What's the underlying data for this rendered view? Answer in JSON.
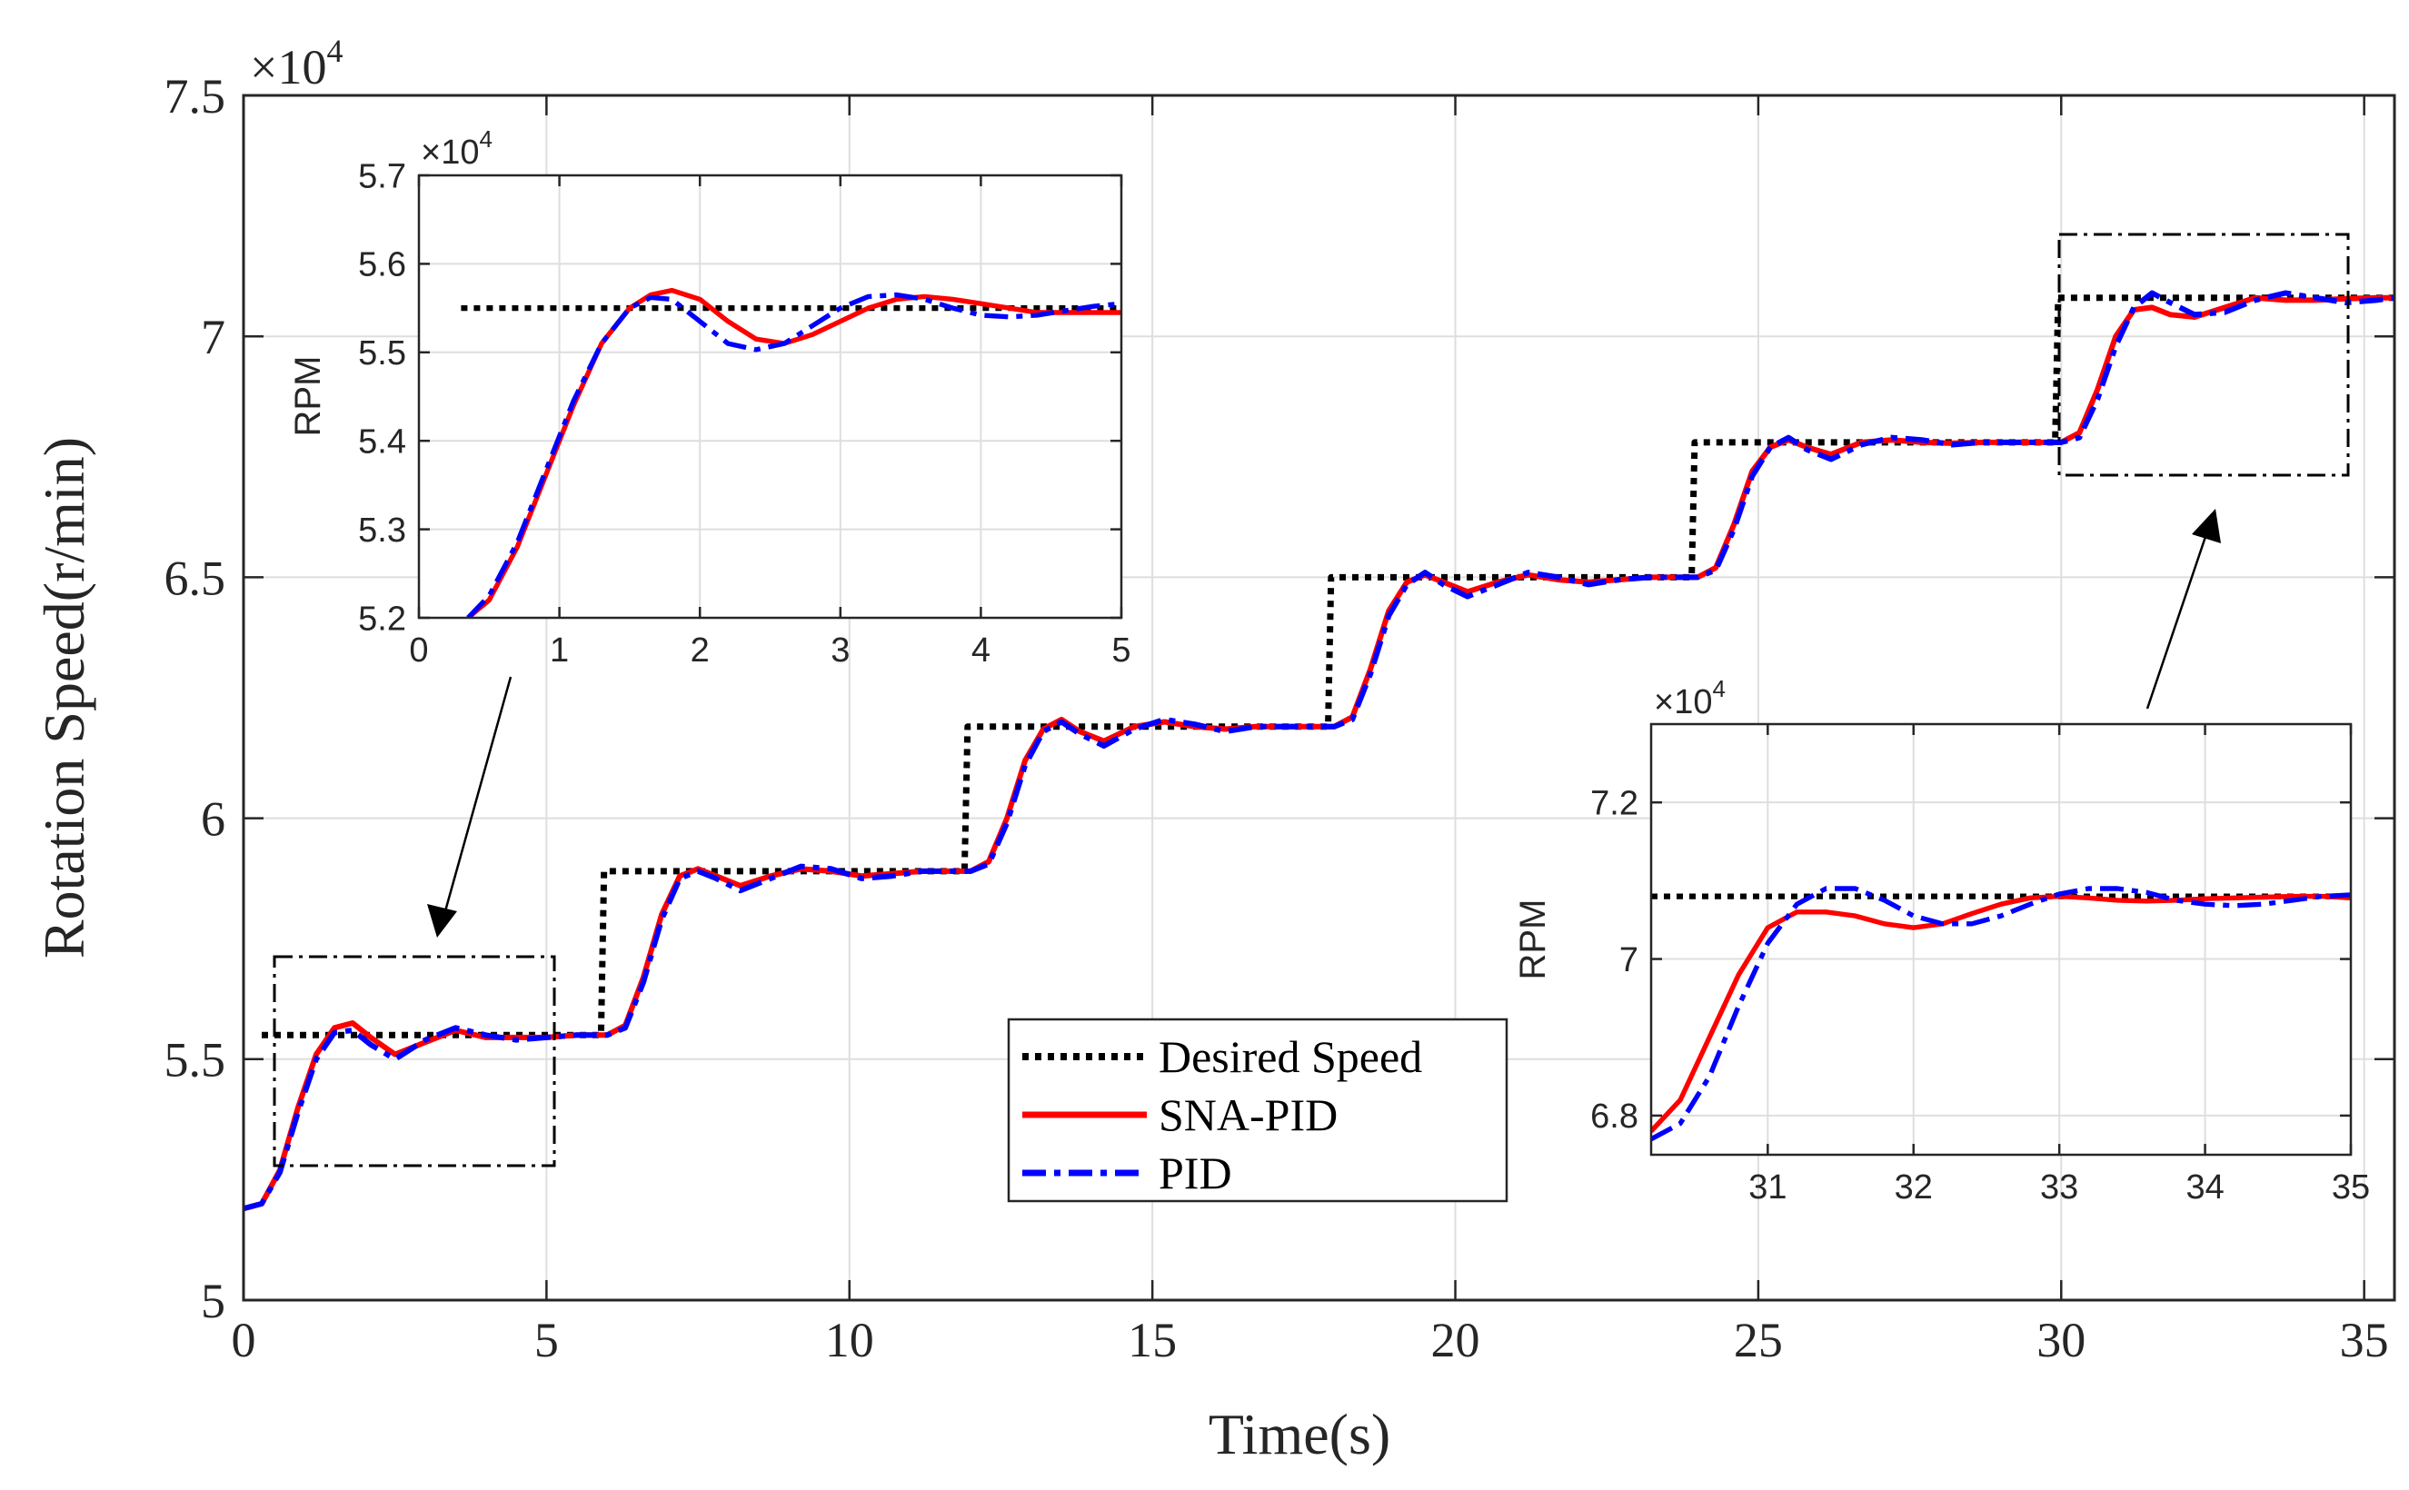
{
  "chart_data": [
    {
      "id": "main",
      "type": "line",
      "title": "",
      "xlabel": "Time(s)",
      "ylabel": "Rotation Speed(r/min)",
      "exponent_label": "×10",
      "exponent_power": "4",
      "xlim": [
        0,
        35.5
      ],
      "ylim": [
        5.0,
        7.5
      ],
      "xticks": [
        0,
        5,
        10,
        15,
        20,
        25,
        30,
        35
      ],
      "xtick_labels": [
        "0",
        "5",
        "10",
        "15",
        "20",
        "25",
        "30",
        "35"
      ],
      "yticks": [
        5.0,
        5.5,
        6.0,
        6.5,
        7.0,
        7.5
      ],
      "ytick_labels": [
        "5",
        "5.5",
        "6",
        "6.5",
        "7",
        "7.5"
      ],
      "grid": true,
      "legend_position": "center-bottom",
      "series": [
        {
          "name": "Desired Speed",
          "color": "#000000",
          "style": "dotted",
          "x": [
            0.3,
            5.9,
            5.95,
            11.9,
            11.95,
            17.9,
            17.95,
            23.9,
            23.95,
            29.9,
            29.95,
            35.5
          ],
          "y": [
            5.55,
            5.55,
            5.89,
            5.89,
            6.19,
            6.19,
            6.5,
            6.5,
            6.78,
            6.78,
            7.08,
            7.08
          ]
        },
        {
          "name": "SNA-PID",
          "color": "#ff0000",
          "style": "solid",
          "x": [
            0,
            0.3,
            0.6,
            0.9,
            1.2,
            1.5,
            1.8,
            2.1,
            2.5,
            3.0,
            3.5,
            4.0,
            4.5,
            5.0,
            5.5,
            6.0,
            6.3,
            6.6,
            6.9,
            7.2,
            7.5,
            7.8,
            8.2,
            8.7,
            9.2,
            9.7,
            10.2,
            10.7,
            11.2,
            11.6,
            12.0,
            12.3,
            12.6,
            12.9,
            13.2,
            13.5,
            13.8,
            14.2,
            14.7,
            15.2,
            15.7,
            16.2,
            16.7,
            17.2,
            17.6,
            18.0,
            18.3,
            18.6,
            18.9,
            19.2,
            19.5,
            19.8,
            20.2,
            20.7,
            21.2,
            21.7,
            22.2,
            22.7,
            23.2,
            23.6,
            24.0,
            24.3,
            24.6,
            24.9,
            25.2,
            25.5,
            25.8,
            26.2,
            26.7,
            27.2,
            27.7,
            28.2,
            28.7,
            29.2,
            29.6,
            30.0,
            30.3,
            30.6,
            30.9,
            31.2,
            31.5,
            31.8,
            32.2,
            32.7,
            33.2,
            33.7,
            34.2,
            34.7,
            35.2,
            35.5
          ],
          "y": [
            5.19,
            5.2,
            5.27,
            5.4,
            5.51,
            5.565,
            5.575,
            5.545,
            5.51,
            5.535,
            5.56,
            5.545,
            5.545,
            5.545,
            5.55,
            5.55,
            5.57,
            5.67,
            5.8,
            5.88,
            5.895,
            5.88,
            5.86,
            5.88,
            5.895,
            5.89,
            5.88,
            5.885,
            5.89,
            5.89,
            5.89,
            5.91,
            6.0,
            6.12,
            6.185,
            6.205,
            6.18,
            6.16,
            6.19,
            6.2,
            6.19,
            6.185,
            6.19,
            6.19,
            6.19,
            6.19,
            6.21,
            6.31,
            6.43,
            6.49,
            6.505,
            6.49,
            6.47,
            6.49,
            6.505,
            6.495,
            6.49,
            6.495,
            6.5,
            6.5,
            6.5,
            6.52,
            6.61,
            6.72,
            6.77,
            6.785,
            6.77,
            6.755,
            6.78,
            6.785,
            6.78,
            6.778,
            6.78,
            6.78,
            6.78,
            6.78,
            6.8,
            6.89,
            7.0,
            7.055,
            7.06,
            7.045,
            7.04,
            7.06,
            7.08,
            7.075,
            7.075,
            7.078,
            7.08,
            7.08
          ]
        },
        {
          "name": "PID",
          "color": "#0000ff",
          "style": "dashdot",
          "x": [
            0,
            0.3,
            0.6,
            0.9,
            1.2,
            1.5,
            1.8,
            2.1,
            2.5,
            3.0,
            3.5,
            4.0,
            4.5,
            5.0,
            5.5,
            6.0,
            6.3,
            6.6,
            6.9,
            7.2,
            7.5,
            7.8,
            8.2,
            8.7,
            9.2,
            9.7,
            10.2,
            10.7,
            11.2,
            11.6,
            12.0,
            12.3,
            12.6,
            12.9,
            13.2,
            13.5,
            13.8,
            14.2,
            14.7,
            15.2,
            15.7,
            16.2,
            16.7,
            17.2,
            17.6,
            18.0,
            18.3,
            18.6,
            18.9,
            19.2,
            19.5,
            19.8,
            20.2,
            20.7,
            21.2,
            21.7,
            22.2,
            22.7,
            23.2,
            23.6,
            24.0,
            24.3,
            24.6,
            24.9,
            25.2,
            25.5,
            25.8,
            26.2,
            26.7,
            27.2,
            27.7,
            28.2,
            28.7,
            29.2,
            29.6,
            30.0,
            30.3,
            30.6,
            30.9,
            31.2,
            31.5,
            31.8,
            32.2,
            32.7,
            33.2,
            33.7,
            34.2,
            34.7,
            35.2,
            35.5
          ],
          "y": [
            5.19,
            5.2,
            5.265,
            5.39,
            5.5,
            5.555,
            5.56,
            5.53,
            5.5,
            5.54,
            5.565,
            5.55,
            5.54,
            5.545,
            5.55,
            5.55,
            5.565,
            5.66,
            5.79,
            5.875,
            5.89,
            5.875,
            5.85,
            5.875,
            5.9,
            5.895,
            5.875,
            5.88,
            5.89,
            5.89,
            5.89,
            5.905,
            5.99,
            6.11,
            6.18,
            6.2,
            6.175,
            6.15,
            6.185,
            6.205,
            6.195,
            6.18,
            6.19,
            6.19,
            6.19,
            6.19,
            6.205,
            6.3,
            6.42,
            6.485,
            6.51,
            6.485,
            6.46,
            6.485,
            6.51,
            6.5,
            6.485,
            6.495,
            6.5,
            6.5,
            6.5,
            6.515,
            6.6,
            6.71,
            6.77,
            6.79,
            6.765,
            6.745,
            6.775,
            6.79,
            6.785,
            6.775,
            6.78,
            6.78,
            6.78,
            6.78,
            6.79,
            6.87,
            6.98,
            7.06,
            7.09,
            7.07,
            7.045,
            7.05,
            7.075,
            7.09,
            7.08,
            7.07,
            7.075,
            7.08
          ]
        }
      ],
      "legend": [
        "Desired Speed",
        "SNA-PID",
        "PID"
      ]
    },
    {
      "id": "inset-left",
      "type": "line",
      "title": "",
      "xlabel": "",
      "ylabel": "RPM",
      "exponent_label": "×10",
      "exponent_power": "4",
      "xlim": [
        0,
        5
      ],
      "ylim": [
        5.2,
        5.7
      ],
      "xticks": [
        0,
        1,
        2,
        3,
        4,
        5
      ],
      "xtick_labels": [
        "0",
        "1",
        "2",
        "3",
        "4",
        "5"
      ],
      "yticks": [
        5.2,
        5.3,
        5.4,
        5.5,
        5.6,
        5.7
      ],
      "ytick_labels": [
        "5.2",
        "5.3",
        "5.4",
        "5.5",
        "5.6",
        "5.7"
      ],
      "grid": true,
      "series": [
        {
          "name": "Desired Speed",
          "color": "#000000",
          "style": "dotted",
          "x": [
            0.3,
            5.0
          ],
          "y": [
            5.55,
            5.55
          ]
        },
        {
          "name": "SNA-PID",
          "color": "#ff0000",
          "style": "solid",
          "x": [
            0.35,
            0.5,
            0.7,
            0.9,
            1.1,
            1.3,
            1.5,
            1.65,
            1.8,
            2.0,
            2.2,
            2.4,
            2.6,
            2.8,
            3.0,
            3.2,
            3.4,
            3.6,
            3.8,
            4.0,
            4.2,
            4.4,
            4.6,
            4.8,
            5.0
          ],
          "y": [
            5.2,
            5.22,
            5.28,
            5.36,
            5.44,
            5.51,
            5.55,
            5.565,
            5.57,
            5.56,
            5.535,
            5.515,
            5.51,
            5.52,
            5.535,
            5.55,
            5.56,
            5.563,
            5.56,
            5.555,
            5.55,
            5.545,
            5.545,
            5.545,
            5.545
          ]
        },
        {
          "name": "PID",
          "color": "#0000ff",
          "style": "dashdot",
          "x": [
            0.35,
            0.5,
            0.7,
            0.9,
            1.1,
            1.3,
            1.5,
            1.65,
            1.8,
            2.0,
            2.2,
            2.4,
            2.6,
            2.8,
            3.0,
            3.2,
            3.4,
            3.6,
            3.8,
            4.0,
            4.2,
            4.4,
            4.6,
            4.8,
            5.0
          ],
          "y": [
            5.2,
            5.225,
            5.285,
            5.365,
            5.445,
            5.51,
            5.55,
            5.562,
            5.56,
            5.535,
            5.51,
            5.503,
            5.51,
            5.53,
            5.55,
            5.563,
            5.565,
            5.56,
            5.55,
            5.542,
            5.54,
            5.542,
            5.547,
            5.552,
            5.555
          ]
        }
      ]
    },
    {
      "id": "inset-right",
      "type": "line",
      "title": "",
      "xlabel": "",
      "ylabel": "RPM",
      "exponent_label": "×10",
      "exponent_power": "4",
      "xlim": [
        30.2,
        35.0
      ],
      "ylim": [
        6.75,
        7.3
      ],
      "xticks": [
        31,
        32,
        33,
        34,
        35
      ],
      "xtick_labels": [
        "31",
        "32",
        "33",
        "34",
        "35"
      ],
      "yticks": [
        6.8,
        7.0,
        7.2
      ],
      "ytick_labels": [
        "6.8",
        "7",
        "7.2"
      ],
      "grid": true,
      "series": [
        {
          "name": "Desired Speed",
          "color": "#000000",
          "style": "dotted",
          "x": [
            30.2,
            35.0
          ],
          "y": [
            7.08,
            7.08
          ]
        },
        {
          "name": "SNA-PID",
          "color": "#ff0000",
          "style": "solid",
          "x": [
            30.2,
            30.4,
            30.6,
            30.8,
            31.0,
            31.2,
            31.4,
            31.6,
            31.8,
            32.0,
            32.2,
            32.4,
            32.6,
            32.8,
            33.0,
            33.2,
            33.4,
            33.6,
            33.8,
            34.0,
            34.2,
            34.4,
            34.6,
            34.8,
            35.0
          ],
          "y": [
            6.78,
            6.82,
            6.9,
            6.98,
            7.04,
            7.06,
            7.06,
            7.055,
            7.045,
            7.04,
            7.045,
            7.058,
            7.07,
            7.078,
            7.08,
            7.078,
            7.075,
            7.074,
            7.075,
            7.077,
            7.078,
            7.079,
            7.08,
            7.08,
            7.078
          ]
        },
        {
          "name": "PID",
          "color": "#0000ff",
          "style": "dashdot",
          "x": [
            30.2,
            30.4,
            30.6,
            30.8,
            31.0,
            31.2,
            31.4,
            31.6,
            31.8,
            32.0,
            32.2,
            32.4,
            32.6,
            32.8,
            33.0,
            33.2,
            33.4,
            33.6,
            33.8,
            34.0,
            34.2,
            34.4,
            34.6,
            34.8,
            35.0
          ],
          "y": [
            6.77,
            6.79,
            6.85,
            6.94,
            7.02,
            7.07,
            7.09,
            7.09,
            7.075,
            7.055,
            7.045,
            7.045,
            7.055,
            7.07,
            7.083,
            7.09,
            7.09,
            7.085,
            7.075,
            7.07,
            7.068,
            7.07,
            7.075,
            7.08,
            7.082
          ]
        }
      ]
    }
  ]
}
